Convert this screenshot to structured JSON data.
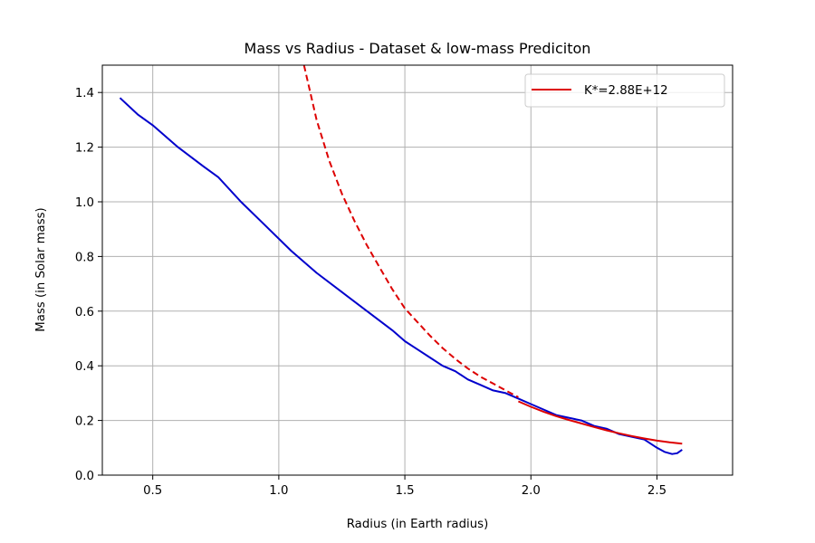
{
  "chart_data": {
    "type": "line",
    "title": "Mass vs Radius - Dataset & low-mass Prediciton",
    "xlabel": "Radius (in Earth radius)",
    "ylabel": "Mass (in Solar mass)",
    "xlim": [
      0.3,
      2.8
    ],
    "ylim": [
      0.0,
      1.5
    ],
    "x_ticks": [
      0.5,
      1.0,
      1.5,
      2.0,
      2.5
    ],
    "x_tick_labels": [
      "0.5",
      "1.0",
      "1.5",
      "2.0",
      "2.5"
    ],
    "y_ticks": [
      0.0,
      0.2,
      0.4,
      0.6,
      0.8,
      1.0,
      1.2,
      1.4
    ],
    "y_tick_labels": [
      "0.0",
      "0.2",
      "0.4",
      "0.6",
      "0.8",
      "1.0",
      "1.2",
      "1.4"
    ],
    "grid": true,
    "legend": {
      "position": "top-right",
      "entries": [
        "K*=2.88E+12"
      ]
    },
    "series": [
      {
        "style": "solid",
        "color": "#0000cc",
        "x": [
          0.37,
          0.44,
          0.5,
          0.6,
          0.7,
          0.76,
          0.85,
          0.95,
          1.05,
          1.15,
          1.25,
          1.35,
          1.45,
          1.5,
          1.55,
          1.6,
          1.65,
          1.7,
          1.75,
          1.8,
          1.85,
          1.9,
          1.95,
          2.0,
          2.05,
          2.1,
          2.15,
          2.2,
          2.25,
          2.3,
          2.35,
          2.4,
          2.45,
          2.5,
          2.53,
          2.56,
          2.58,
          2.6
        ],
        "y": [
          1.38,
          1.32,
          1.28,
          1.2,
          1.13,
          1.09,
          1.0,
          0.91,
          0.82,
          0.74,
          0.67,
          0.6,
          0.53,
          0.49,
          0.46,
          0.43,
          0.4,
          0.38,
          0.35,
          0.33,
          0.31,
          0.3,
          0.28,
          0.26,
          0.24,
          0.22,
          0.21,
          0.2,
          0.18,
          0.17,
          0.15,
          0.14,
          0.13,
          0.1,
          0.085,
          0.077,
          0.08,
          0.093
        ]
      },
      {
        "name": "K*=2.88E+12",
        "style": "solid",
        "color": "#dd0000",
        "x": [
          1.95,
          2.0,
          2.05,
          2.1,
          2.15,
          2.2,
          2.25,
          2.3,
          2.35,
          2.4,
          2.45,
          2.5,
          2.55,
          2.6
        ],
        "y": [
          0.27,
          0.25,
          0.232,
          0.216,
          0.202,
          0.189,
          0.176,
          0.164,
          0.153,
          0.143,
          0.134,
          0.126,
          0.12,
          0.115
        ]
      },
      {
        "style": "dashed",
        "color": "#dd0000",
        "x": [
          1.1,
          1.15,
          1.2,
          1.25,
          1.3,
          1.35,
          1.4,
          1.45,
          1.5,
          1.55,
          1.6,
          1.65,
          1.7,
          1.75,
          1.8,
          1.85,
          1.9,
          1.95
        ],
        "y": [
          1.5,
          1.3,
          1.15,
          1.03,
          0.93,
          0.84,
          0.76,
          0.68,
          0.61,
          0.56,
          0.51,
          0.465,
          0.425,
          0.39,
          0.36,
          0.335,
          0.31,
          0.285
        ]
      }
    ]
  }
}
